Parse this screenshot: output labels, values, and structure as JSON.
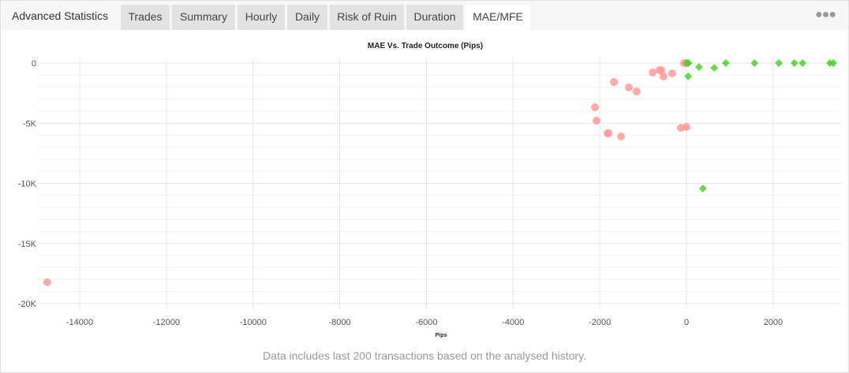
{
  "header": {
    "title": "Advanced Statistics",
    "menu_icon": "ellipsis-icon",
    "tabs": [
      {
        "label": "Trades"
      },
      {
        "label": "Summary"
      },
      {
        "label": "Hourly"
      },
      {
        "label": "Daily"
      },
      {
        "label": "Risk of Ruin"
      },
      {
        "label": "Duration"
      },
      {
        "label": "MAE/MFE",
        "active": true
      }
    ]
  },
  "footer": "Data includes last 200 transactions based on the analysed history.",
  "chart_data": {
    "type": "scatter",
    "title": "MAE Vs. Trade Outcome (Pips)",
    "xlabel": "Pips",
    "ylabel": "",
    "xlim": [
      -15200,
      3600
    ],
    "ylim": [
      -20000,
      0
    ],
    "xticks": [
      -14000,
      -12000,
      -10000,
      -8000,
      -6000,
      -4000,
      -2000,
      0,
      2000
    ],
    "xtick_labels": [
      "-14000",
      "-12000",
      "-10000",
      "-8000",
      "-6000",
      "-4000",
      "-2000",
      "0",
      "2000"
    ],
    "yticks": [
      0,
      -5000,
      -10000,
      -15000,
      -20000
    ],
    "ytick_labels": [
      "0",
      "-5K",
      "-10K",
      "-15K",
      "-20K"
    ],
    "grid": true,
    "colors": {
      "loss": "#ff9a9a",
      "win": "#4fd12b"
    },
    "series": [
      {
        "marker": "circle",
        "color": "#ff9a9a",
        "points": [
          [
            -14750,
            -18230
          ],
          [
            -2110,
            -3670
          ],
          [
            -2075,
            -4790
          ],
          [
            -1820,
            -5840
          ],
          [
            -1800,
            -5840
          ],
          [
            -1510,
            -6100
          ],
          [
            -1675,
            -1570
          ],
          [
            -1330,
            -2030
          ],
          [
            -1150,
            -2360
          ],
          [
            -780,
            -790
          ],
          [
            -620,
            -590
          ],
          [
            -580,
            -590
          ],
          [
            -530,
            -1110
          ],
          [
            -330,
            -850
          ],
          [
            -130,
            -5380
          ],
          [
            0,
            -5310
          ],
          [
            -55,
            0
          ],
          [
            0,
            0
          ]
        ]
      },
      {
        "marker": "diamond",
        "color": "#4fd12b",
        "points": [
          [
            0,
            0
          ],
          [
            50,
            0
          ],
          [
            290,
            -330
          ],
          [
            640,
            -390
          ],
          [
            910,
            0
          ],
          [
            1570,
            0
          ],
          [
            2130,
            0
          ],
          [
            2490,
            0
          ],
          [
            2680,
            0
          ],
          [
            3310,
            0
          ],
          [
            3390,
            0
          ],
          [
            40,
            -1110
          ],
          [
            380,
            -10430
          ]
        ]
      }
    ]
  }
}
